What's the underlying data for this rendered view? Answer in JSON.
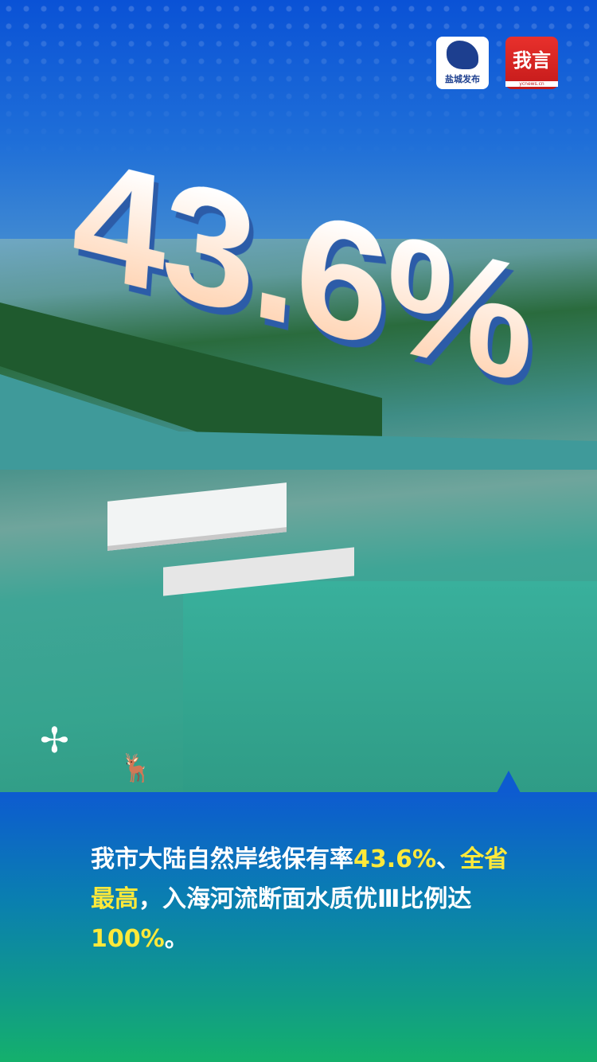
{
  "headline_value": "43.6%",
  "logos": {
    "left": {
      "text": "盐城发布"
    },
    "right": {
      "text": "我言",
      "subtext": "ycnews.cn"
    }
  },
  "caption": {
    "part1": "我市大陆自然岸线保有率",
    "hl1": "43.6%",
    "part2": "、",
    "hl2": "全省最高",
    "part3": "，入海河流断面水质优Ⅲ比例达",
    "hl3": "100%",
    "part4": "。"
  },
  "colors": {
    "highlight": "#ffe93a",
    "panel_top": "#0d5bd0",
    "panel_bottom": "#14b06c"
  }
}
